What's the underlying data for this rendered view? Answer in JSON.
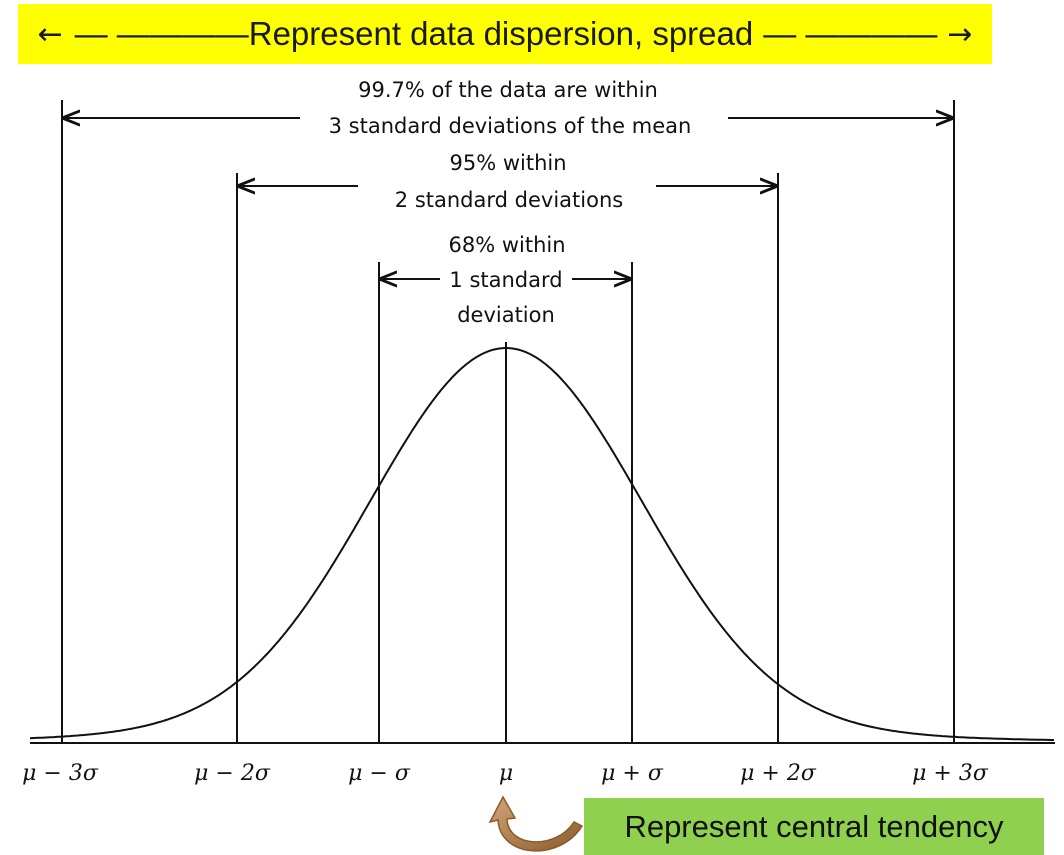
{
  "banner": {
    "left_arrow": "←",
    "left_dashes": "— ————",
    "text": "Represent data dispersion, spread",
    "right_dashes": "— ————",
    "right_arrow": "→",
    "color": "#ffff00"
  },
  "ranges": [
    {
      "line1": "99.7% of the data are within",
      "line2": "3 standard deviations of the mean"
    },
    {
      "line1": "95% within",
      "line2": "2 standard deviations"
    },
    {
      "line1": "68% within",
      "line2": "1 standard",
      "line3": "deviation"
    }
  ],
  "axis_labels": [
    "μ − 3σ",
    "μ − 2σ",
    "μ − σ",
    "μ",
    "μ + σ",
    "μ + 2σ",
    "μ + 3σ"
  ],
  "callout": {
    "text": "Represent central tendency",
    "color": "#8fd14f",
    "arrow_color": "#a0522d"
  }
}
